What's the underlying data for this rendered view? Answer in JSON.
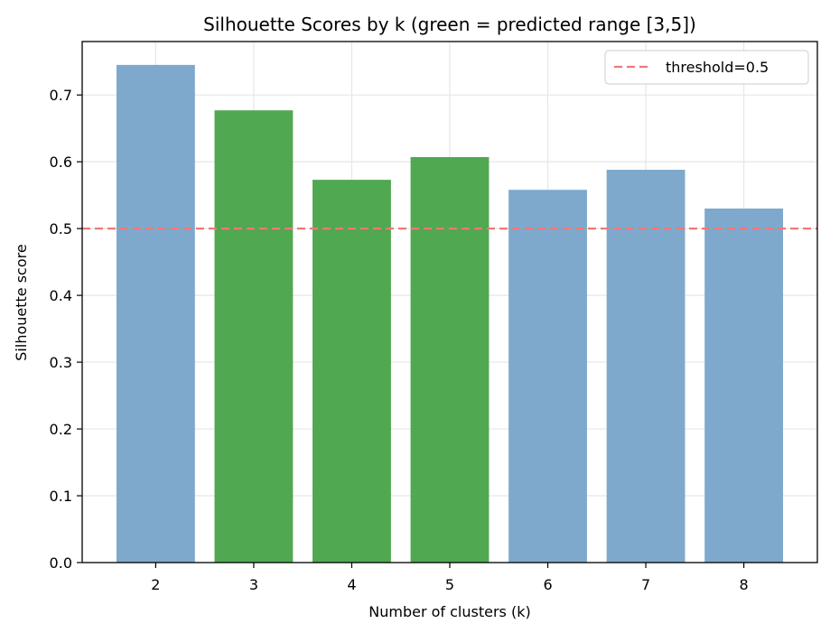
{
  "chart_data": {
    "type": "bar",
    "title": "Silhouette Scores by k (green = predicted range [3,5])",
    "xlabel": "Number of clusters (k)",
    "ylabel": "Silhouette score",
    "categories": [
      "2",
      "3",
      "4",
      "5",
      "6",
      "7",
      "8"
    ],
    "values": [
      0.745,
      0.677,
      0.573,
      0.607,
      0.558,
      0.588,
      0.53
    ],
    "highlighted": [
      "3",
      "4",
      "5"
    ],
    "colors": {
      "default_bar": "#7ba7cb",
      "highlight_bar": "#4ca64c",
      "threshold_line": "#f07878",
      "grid": "#e6e6e6"
    },
    "ylim": [
      0,
      0.78
    ],
    "yticks": [
      "0.0",
      "0.1",
      "0.2",
      "0.3",
      "0.4",
      "0.5",
      "0.6",
      "0.7"
    ],
    "threshold": {
      "value": 0.5,
      "label": "threshold=0.5"
    },
    "legend_position": "top-right",
    "grid": true
  }
}
